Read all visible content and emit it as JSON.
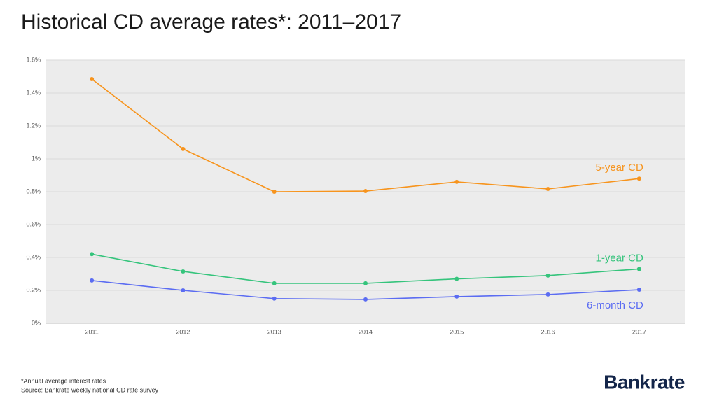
{
  "chart_data": {
    "type": "line",
    "title": "Historical CD average rates*: 2011–2017",
    "categories": [
      "2011",
      "2012",
      "2013",
      "2014",
      "2015",
      "2016",
      "2017"
    ],
    "series": [
      {
        "name": "5-year CD",
        "color": "#f7941d",
        "values": [
          1.485,
          1.06,
          0.8,
          0.804,
          0.86,
          0.817,
          0.88
        ]
      },
      {
        "name": "1-year CD",
        "color": "#35c47c",
        "values": [
          0.42,
          0.315,
          0.243,
          0.243,
          0.27,
          0.29,
          0.33
        ]
      },
      {
        "name": "6-month CD",
        "color": "#5b6cf2",
        "values": [
          0.26,
          0.2,
          0.15,
          0.145,
          0.162,
          0.175,
          0.204
        ]
      }
    ],
    "ylim": [
      0,
      1.6
    ],
    "yticks": [
      {
        "value": 0,
        "label": "0%"
      },
      {
        "value": 0.2,
        "label": "0.2%"
      },
      {
        "value": 0.4,
        "label": "0.4%"
      },
      {
        "value": 0.6,
        "label": "0.6%"
      },
      {
        "value": 0.8,
        "label": "0.8%"
      },
      {
        "value": 1,
        "label": "1%"
      },
      {
        "value": 1.2,
        "label": "1.2%"
      },
      {
        "value": 1.4,
        "label": "1.4%"
      },
      {
        "value": 1.6,
        "label": "1.6%"
      }
    ],
    "grid": true,
    "footnote": "*Annual average interest rates",
    "source": "Source: Bankrate weekly national CD rate survey",
    "brand": "Bankrate"
  }
}
